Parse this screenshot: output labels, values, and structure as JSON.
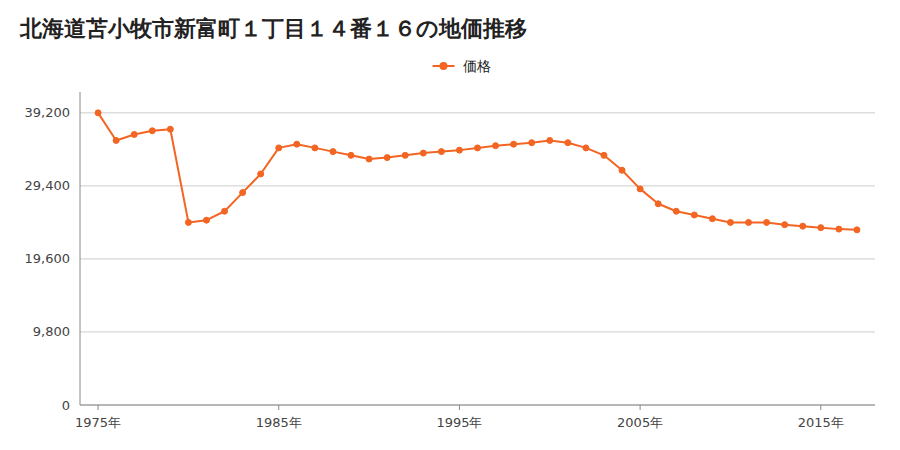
{
  "chart_data": {
    "type": "line",
    "title": "北海道苫小牧市新富町１丁目１４番１６の地価推移",
    "x": [
      1975,
      1976,
      1977,
      1978,
      1979,
      1980,
      1981,
      1982,
      1983,
      1984,
      1985,
      1986,
      1987,
      1988,
      1989,
      1990,
      1991,
      1992,
      1993,
      1994,
      1995,
      1996,
      1997,
      1998,
      1999,
      2000,
      2001,
      2002,
      2003,
      2004,
      2005,
      2006,
      2007,
      2008,
      2009,
      2010,
      2011,
      2012,
      2013,
      2014,
      2015,
      2016,
      2017
    ],
    "series": [
      {
        "name": "価格",
        "color": "#f26522",
        "marker": "circle",
        "values": [
          39200,
          35500,
          36300,
          36800,
          37000,
          24500,
          24800,
          26000,
          28500,
          31000,
          34500,
          35000,
          34500,
          34000,
          33500,
          33000,
          33200,
          33500,
          33800,
          34000,
          34200,
          34500,
          34800,
          35000,
          35200,
          35500,
          35200,
          34500,
          33500,
          31500,
          29000,
          27000,
          26000,
          25500,
          25000,
          24500,
          24500,
          24500,
          24200,
          24000,
          23800,
          23600,
          23500
        ]
      }
    ],
    "xlim": [
      1974,
      2018
    ],
    "xticks": [
      {
        "value": 1975,
        "label": "1975年"
      },
      {
        "value": 1985,
        "label": "1985年"
      },
      {
        "value": 1995,
        "label": "1995年"
      },
      {
        "value": 2005,
        "label": "2005年"
      },
      {
        "value": 2015,
        "label": "2015年"
      }
    ],
    "ylim": [
      0,
      42000
    ],
    "yticks": [
      0,
      {
        "value": 9800,
        "label": "9,800"
      },
      {
        "value": 19600,
        "label": "19,600"
      },
      {
        "value": 29400,
        "label": "29,400"
      },
      {
        "value": 39200,
        "label": "39,200"
      }
    ],
    "grid": true,
    "legend": "top"
  }
}
